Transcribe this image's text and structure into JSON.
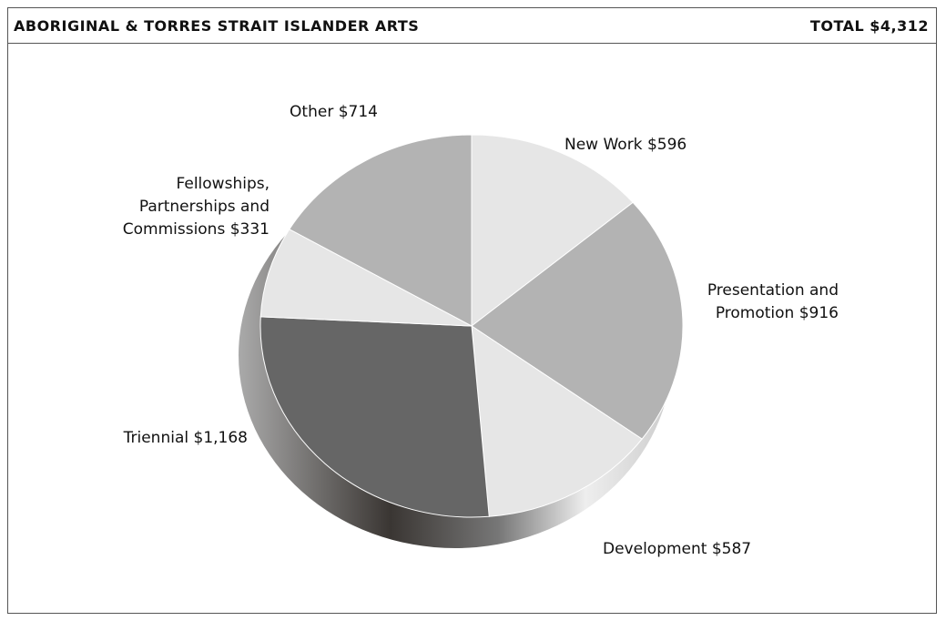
{
  "chart_data": {
    "type": "pie",
    "title": "ABORIGINAL & TORRES STRAIT ISLANDER ARTS",
    "total_label": "TOTAL $4,312",
    "categories": [
      "New Work",
      "Presentation and Promotion",
      "Development",
      "Triennial",
      "Fellowships, Partnerships and Commissions",
      "Other"
    ],
    "values": [
      596,
      916,
      587,
      1168,
      331,
      714
    ],
    "value_labels": [
      "$596",
      "$916",
      "$587",
      "$1,168",
      "$331",
      "$714"
    ],
    "colors": [
      "#e6e6e6",
      "#b3b3b3",
      "#e6e6e6",
      "#666666",
      "#e6e6e6",
      "#b3b3b3"
    ]
  }
}
